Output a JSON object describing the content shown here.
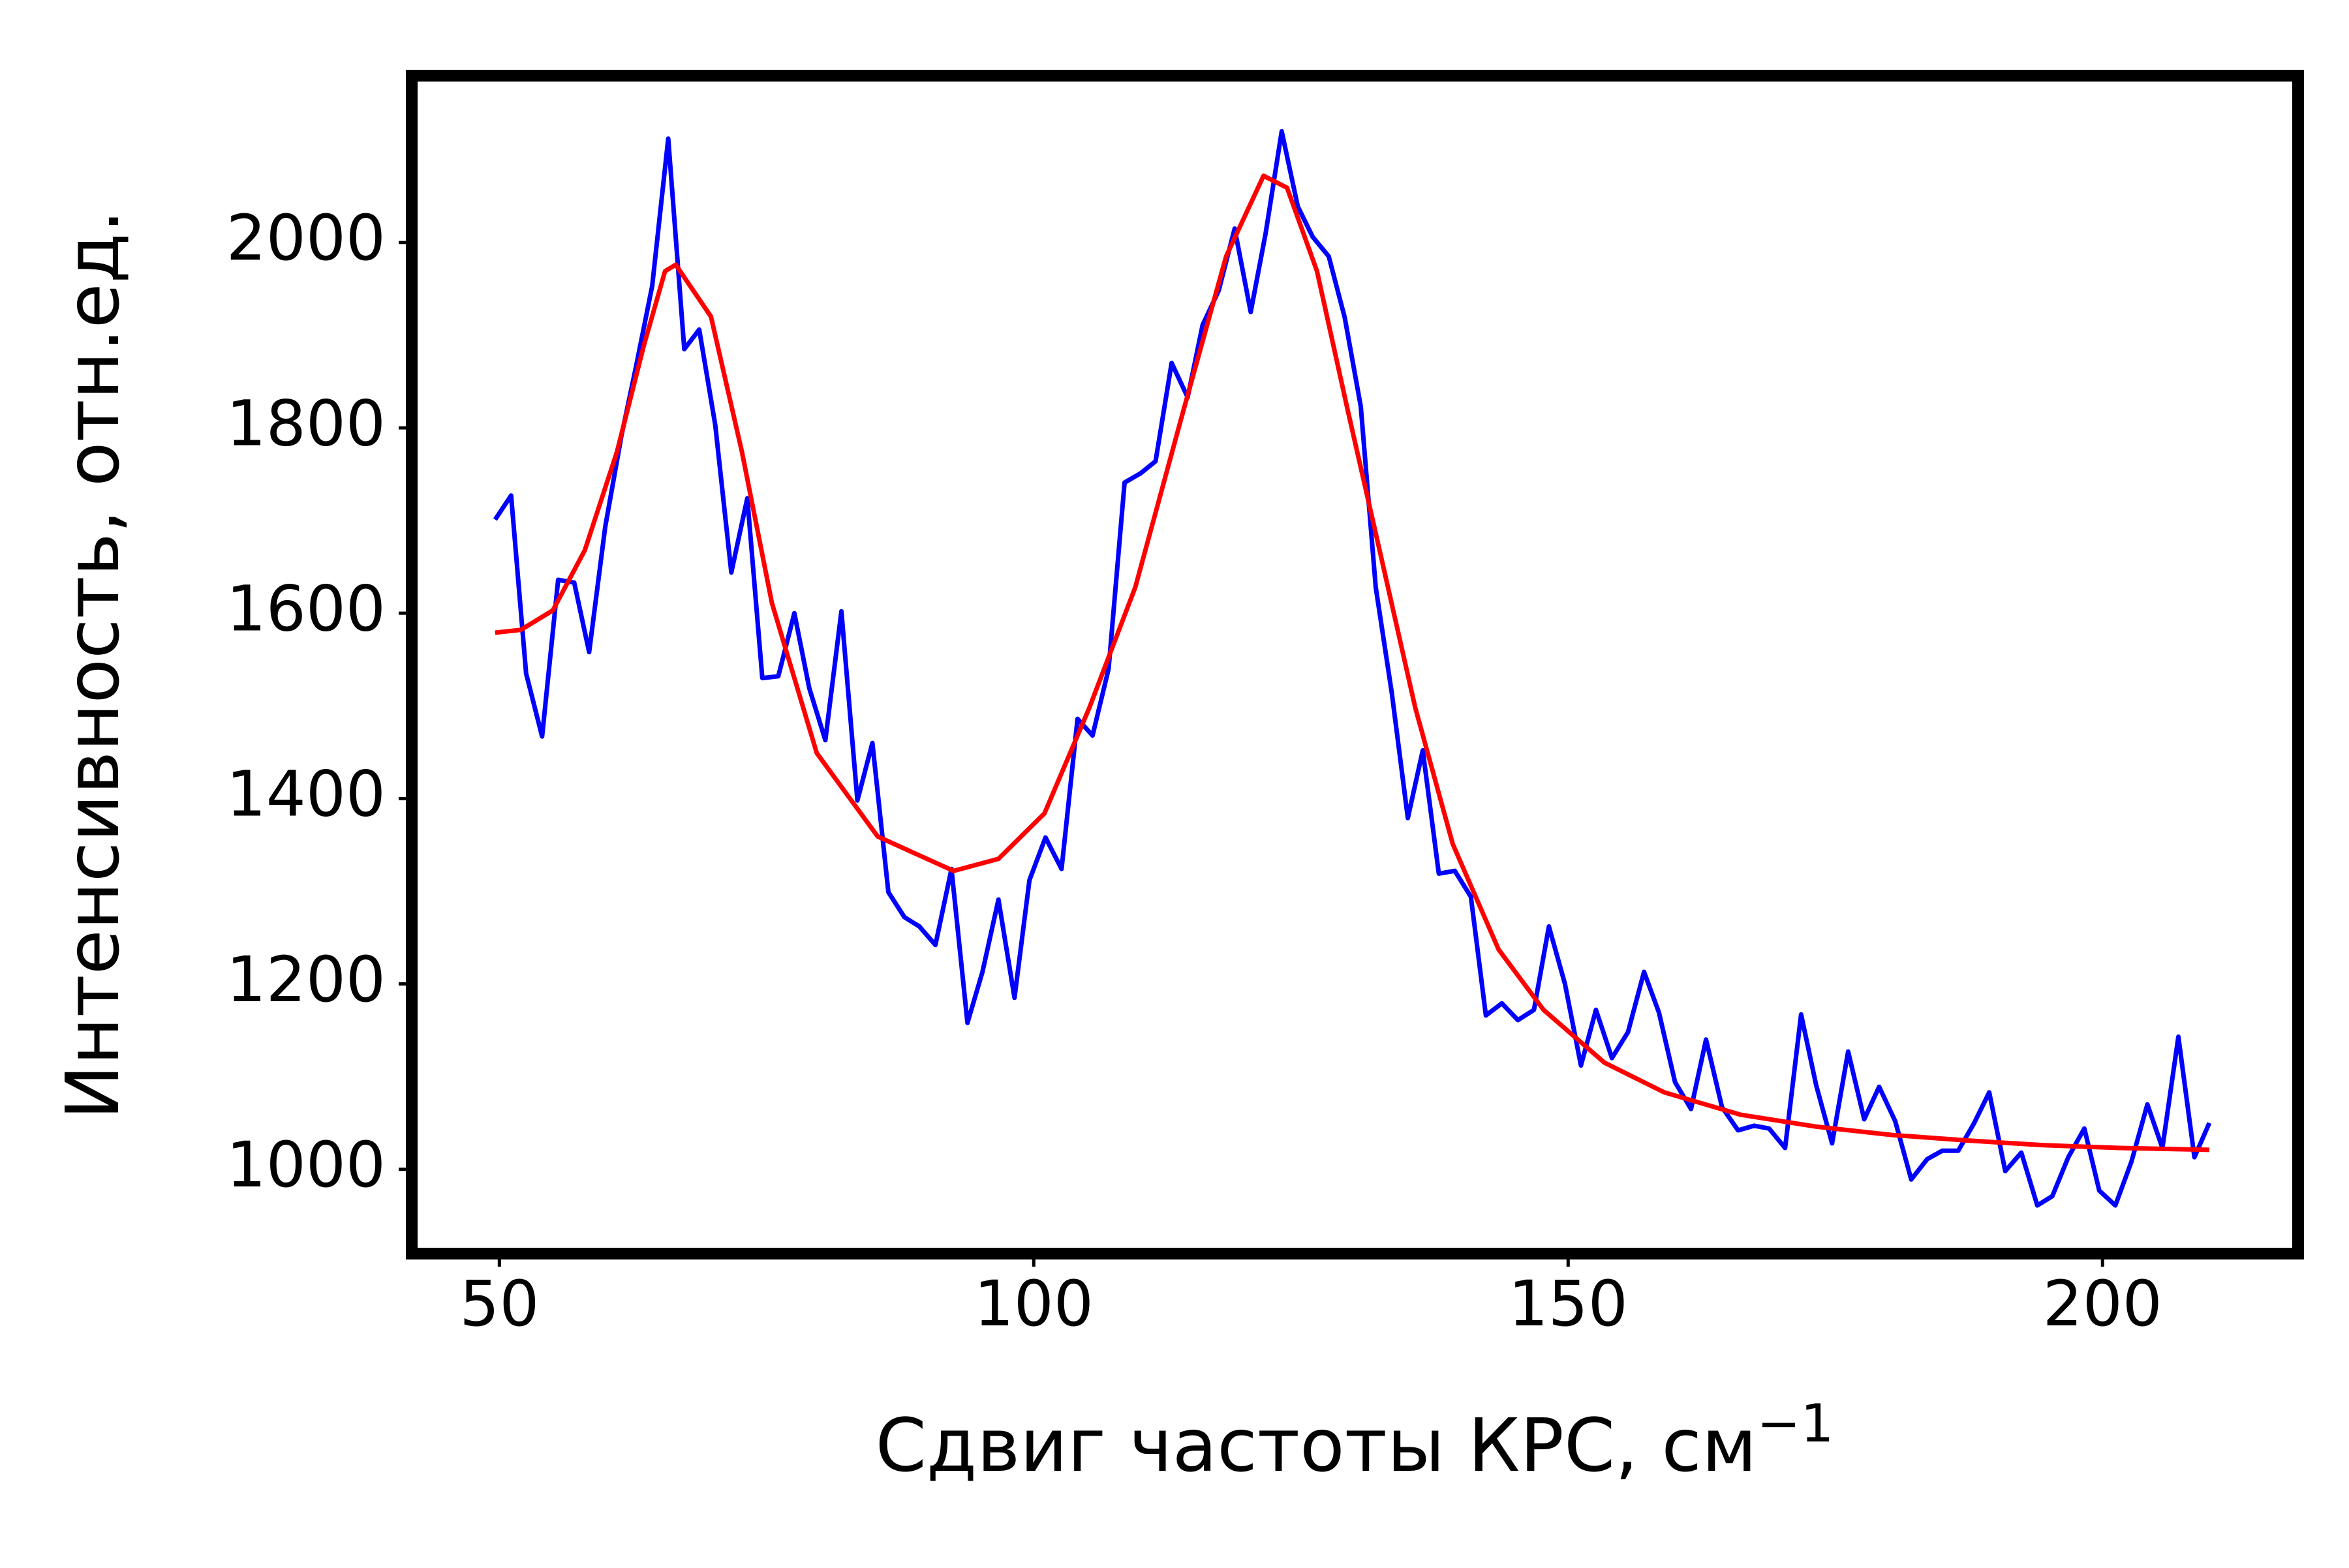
{
  "chart_data": {
    "type": "line",
    "x_label": "Сдвиг частоты КРС, см",
    "x_label_superscript": "−1",
    "y_label": "Интенсивность, отн.ед.",
    "xlim": [
      41.8,
      218.3
    ],
    "xticks": [
      50,
      100,
      150,
      200
    ],
    "ylim": [
      909,
      2180
    ],
    "yticks": [
      1000,
      1200,
      1400,
      1600,
      1800,
      2000
    ],
    "grid": false,
    "series": [
      {
        "color": "#0000ff",
        "x": [
          49.6,
          51.1,
          52.5,
          54.0,
          55.5,
          57.0,
          58.4,
          59.9,
          61.4,
          62.8,
          64.3,
          65.8,
          67.3,
          68.7,
          70.2,
          71.7,
          73.2,
          74.6,
          76.1,
          77.6,
          79.0,
          80.5,
          82.0,
          83.5,
          84.9,
          86.4,
          87.9,
          89.3,
          90.8,
          92.3,
          93.8,
          95.2,
          96.7,
          98.2,
          99.6,
          101.1,
          102.6,
          104.1,
          105.5,
          107.0,
          108.5,
          110.0,
          111.4,
          112.9,
          114.4,
          115.8,
          117.3,
          118.8,
          120.3,
          121.7,
          123.2,
          124.7,
          126.1,
          127.6,
          129.1,
          130.6,
          132.0,
          133.5,
          135.0,
          136.4,
          137.9,
          139.4,
          140.9,
          142.3,
          143.8,
          145.3,
          146.8,
          148.2,
          149.7,
          151.2,
          152.6,
          154.1,
          155.6,
          157.1,
          158.5,
          160.0,
          161.5,
          162.9,
          164.4,
          165.9,
          167.4,
          168.8,
          170.3,
          171.8,
          173.2,
          174.7,
          176.2,
          177.7,
          179.1,
          180.6,
          182.1,
          183.6,
          185.0,
          186.5,
          188.0,
          189.4,
          190.9,
          192.4,
          193.9,
          195.3,
          196.8,
          198.3,
          199.7,
          201.2,
          202.7,
          204.2,
          205.6,
          207.1,
          208.6,
          210.0
        ],
        "values": [
          1701,
          1727,
          1535,
          1467,
          1636,
          1633,
          1558,
          1693,
          1790,
          1867,
          1953,
          2112,
          1885,
          1906,
          1803,
          1644,
          1724,
          1530,
          1532,
          1600,
          1519,
          1463,
          1602,
          1398,
          1460,
          1299,
          1272,
          1262,
          1242,
          1324,
          1158,
          1213,
          1291,
          1185,
          1312,
          1358,
          1324,
          1486,
          1468,
          1540,
          1741,
          1751,
          1764,
          1870,
          1833,
          1911,
          1948,
          2015,
          1925,
          2010,
          2120,
          2039,
          2006,
          1985,
          1919,
          1823,
          1628,
          1514,
          1379,
          1452,
          1319,
          1322,
          1294,
          1166,
          1179,
          1161,
          1172,
          1262,
          1200,
          1112,
          1172,
          1120,
          1148,
          1213,
          1169,
          1094,
          1065,
          1140,
          1067,
          1042,
          1047,
          1044,
          1023,
          1167,
          1091,
          1028,
          1127,
          1054,
          1089,
          1052,
          989,
          1011,
          1020,
          1020,
          1050,
          1083,
          998,
          1018,
          961,
          971,
          1013,
          1044,
          977,
          961,
          1008,
          1070,
          1023,
          1143,
          1013,
          1050
        ]
      },
      {
        "color": "#ff0000",
        "x": [
          49.6,
          52,
          55,
          58,
          61,
          63.5,
          65.5,
          66.5,
          69.8,
          72.7,
          75.5,
          79.7,
          85.4,
          92.5,
          96.7,
          101,
          105.2,
          109.5,
          113.7,
          118,
          121.5,
          123.7,
          126.5,
          129.3,
          132.2,
          135.7,
          139.2,
          143.5,
          147.7,
          153.4,
          159,
          166.1,
          173.2,
          180.3,
          187.4,
          194.5,
          201.6,
          210
        ],
        "values": [
          1579,
          1582,
          1603,
          1668,
          1774,
          1888,
          1969,
          1976,
          1920,
          1774,
          1611,
          1449,
          1359,
          1322,
          1335,
          1384,
          1498,
          1628,
          1806,
          1985,
          2072,
          2059,
          1969,
          1823,
          1676,
          1498,
          1351,
          1237,
          1172,
          1115,
          1083,
          1059,
          1046,
          1037,
          1031,
          1026,
          1023,
          1021
        ]
      }
    ]
  }
}
